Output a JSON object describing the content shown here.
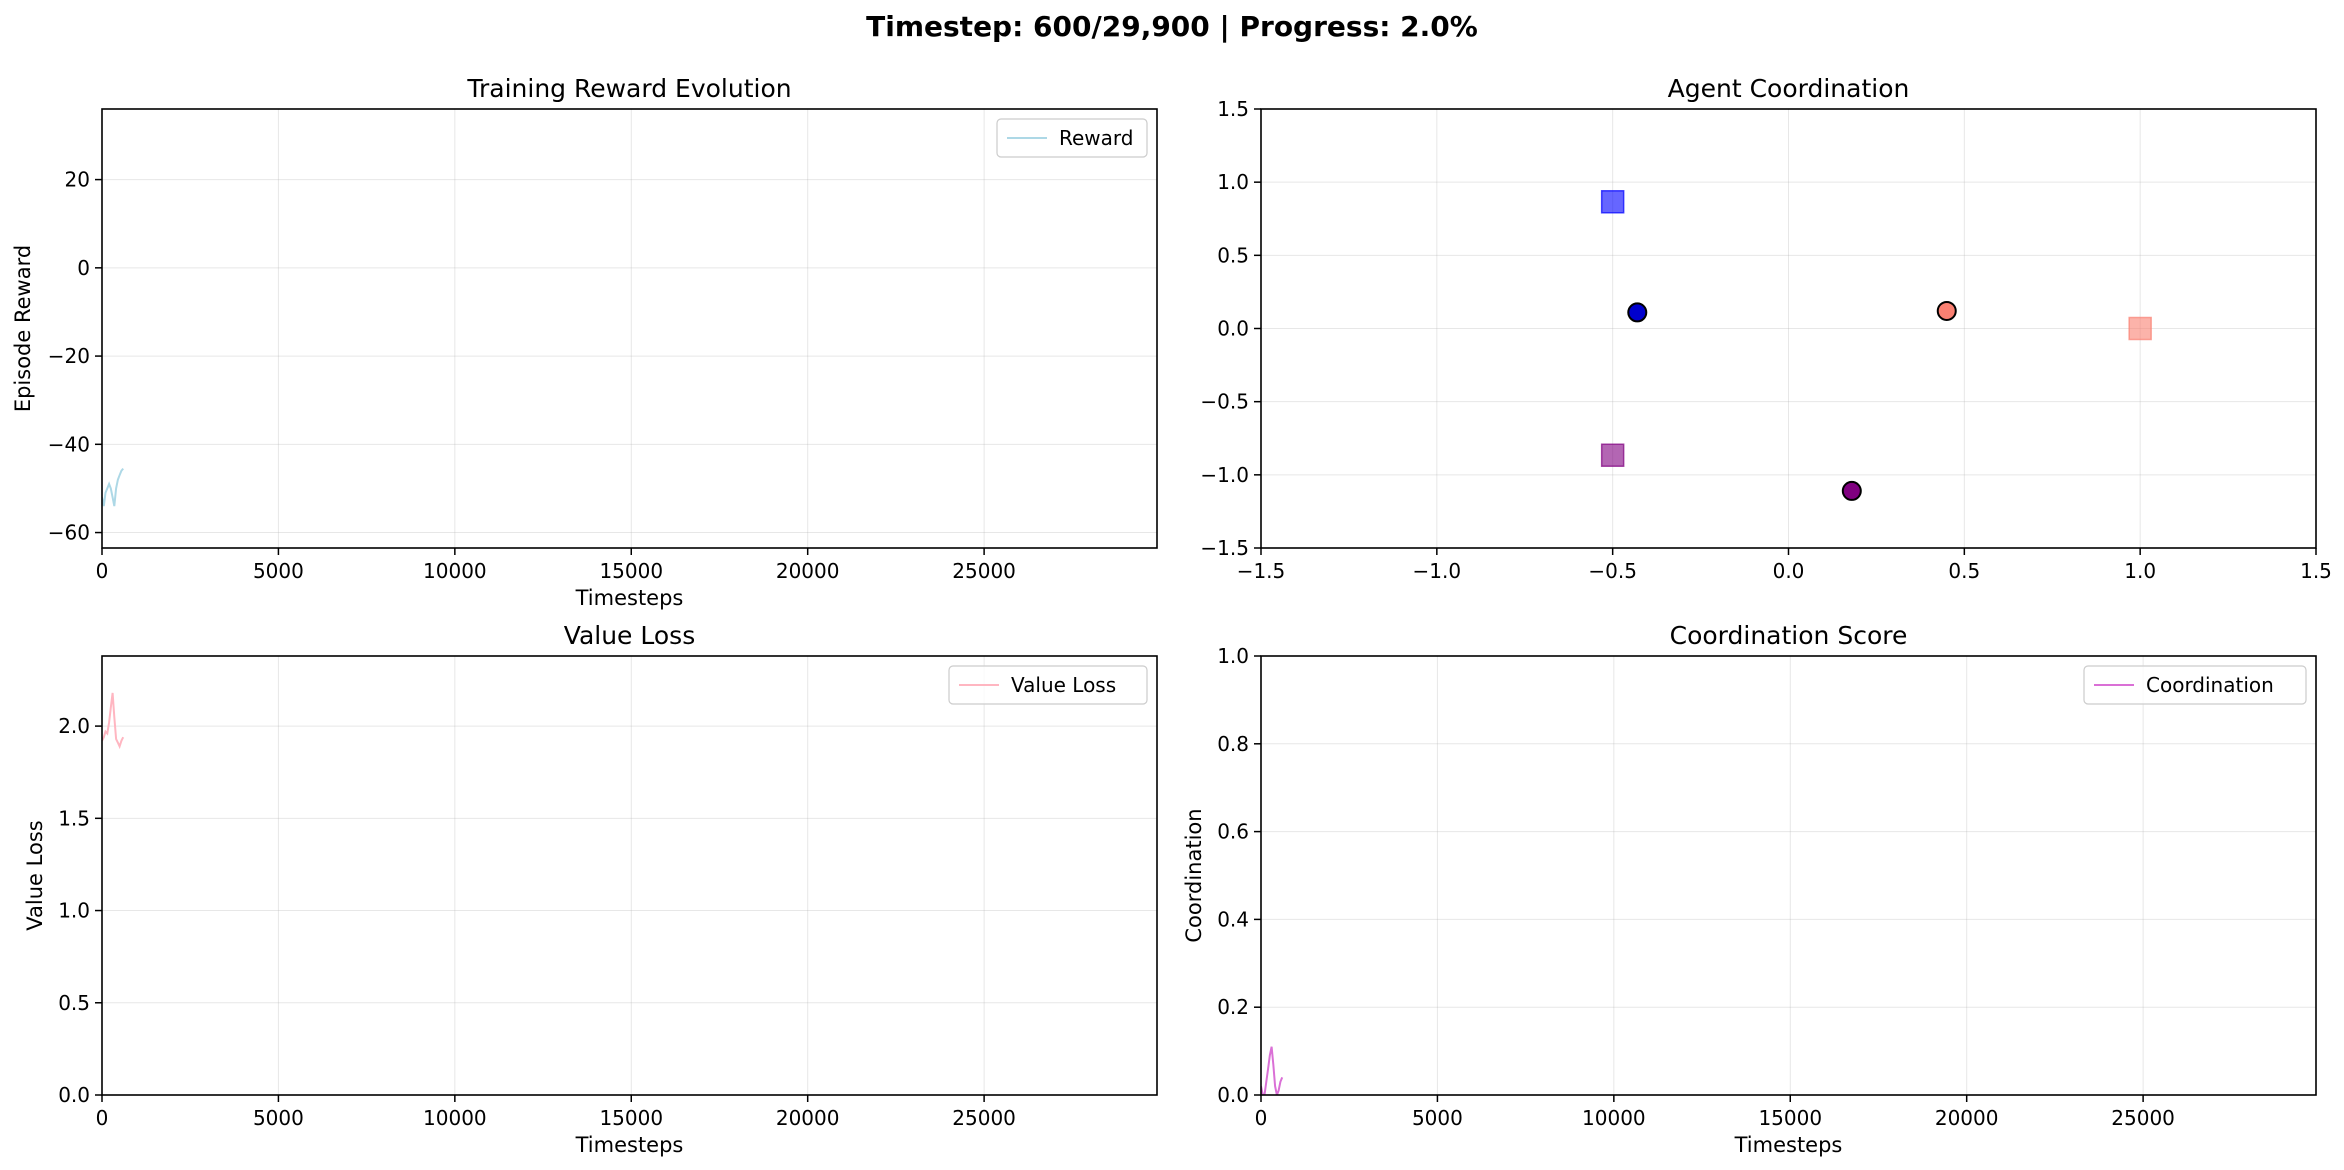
{
  "figure": {
    "suptitle": "Timestep: 600/29,900 | Progress: 2.0%"
  },
  "chart_data": [
    {
      "id": "reward",
      "type": "line",
      "title": "Training Reward Evolution",
      "xlabel": "Timesteps",
      "ylabel": "Episode Reward",
      "xlim": [
        0,
        29900
      ],
      "ylim": [
        -63.5,
        36
      ],
      "xticks": [
        0,
        5000,
        10000,
        15000,
        20000,
        25000
      ],
      "yticks": [
        -60,
        -40,
        -20,
        0,
        20
      ],
      "grid": true,
      "legend": "upper-right",
      "series": [
        {
          "name": "Reward",
          "color": "#add8e6",
          "x": [
            0,
            50,
            100,
            150,
            200,
            250,
            300,
            350,
            400,
            450,
            500,
            550,
            600
          ],
          "y": [
            -52,
            -54,
            -51,
            -50,
            -49,
            -50,
            -52,
            -54,
            -50,
            -48,
            -47,
            -46,
            -45.5
          ]
        }
      ]
    },
    {
      "id": "coord",
      "type": "scatter",
      "title": "Agent Coordination",
      "xlabel": "",
      "ylabel": "",
      "xlim": [
        -1.5,
        1.5
      ],
      "ylim": [
        -1.5,
        1.5
      ],
      "xticks": [
        -1.5,
        -1.0,
        -0.5,
        0.0,
        0.5,
        1.0,
        1.5
      ],
      "yticks": [
        -1.5,
        -1.0,
        -0.5,
        0.0,
        0.5,
        1.0,
        1.5
      ],
      "grid": true,
      "agents": [
        {
          "x": -0.43,
          "y": 0.11,
          "color": "#0000cd",
          "marker": "circle"
        },
        {
          "x": 0.45,
          "y": 0.12,
          "color": "#fa8072",
          "marker": "circle"
        },
        {
          "x": 0.18,
          "y": -1.11,
          "color": "#800080",
          "marker": "circle"
        }
      ],
      "targets": [
        {
          "x": -0.5,
          "y": 0.866,
          "color": "#0000ff",
          "marker": "square"
        },
        {
          "x": 1.0,
          "y": 0.0,
          "color": "#fa8072",
          "marker": "square"
        },
        {
          "x": -0.5,
          "y": -0.866,
          "color": "#800080",
          "marker": "square"
        }
      ]
    },
    {
      "id": "value",
      "type": "line",
      "title": "Value Loss",
      "xlabel": "Timesteps",
      "ylabel": "Value Loss",
      "xlim": [
        0,
        29900
      ],
      "ylim": [
        0,
        2.38
      ],
      "xticks": [
        0,
        5000,
        10000,
        15000,
        20000,
        25000
      ],
      "yticks": [
        0.0,
        0.5,
        1.0,
        1.5,
        2.0
      ],
      "grid": true,
      "legend": "upper-right",
      "series": [
        {
          "name": "Value Loss",
          "color": "#ffb6c1",
          "x": [
            0,
            50,
            100,
            150,
            200,
            250,
            300,
            350,
            400,
            450,
            500,
            550,
            600
          ],
          "y": [
            1.92,
            1.94,
            1.97,
            1.96,
            2.02,
            2.1,
            2.18,
            2.05,
            1.93,
            1.91,
            1.89,
            1.92,
            1.94
          ]
        }
      ]
    },
    {
      "id": "coordscore",
      "type": "line",
      "title": "Coordination Score",
      "xlabel": "Timesteps",
      "ylabel": "Coordination",
      "xlim": [
        0,
        29900
      ],
      "ylim": [
        0,
        1.0
      ],
      "xticks": [
        0,
        5000,
        10000,
        15000,
        20000,
        25000
      ],
      "yticks": [
        0.0,
        0.2,
        0.4,
        0.6,
        0.8,
        1.0
      ],
      "grid": true,
      "legend": "upper-right",
      "series": [
        {
          "name": "Coordination",
          "color": "#da70d6",
          "x": [
            0,
            50,
            100,
            150,
            200,
            250,
            300,
            350,
            400,
            450,
            500,
            550,
            600
          ],
          "y": [
            0.02,
            0.0,
            0.0,
            0.03,
            0.06,
            0.09,
            0.11,
            0.07,
            0.02,
            0.0,
            0.01,
            0.03,
            0.04
          ]
        }
      ]
    }
  ]
}
